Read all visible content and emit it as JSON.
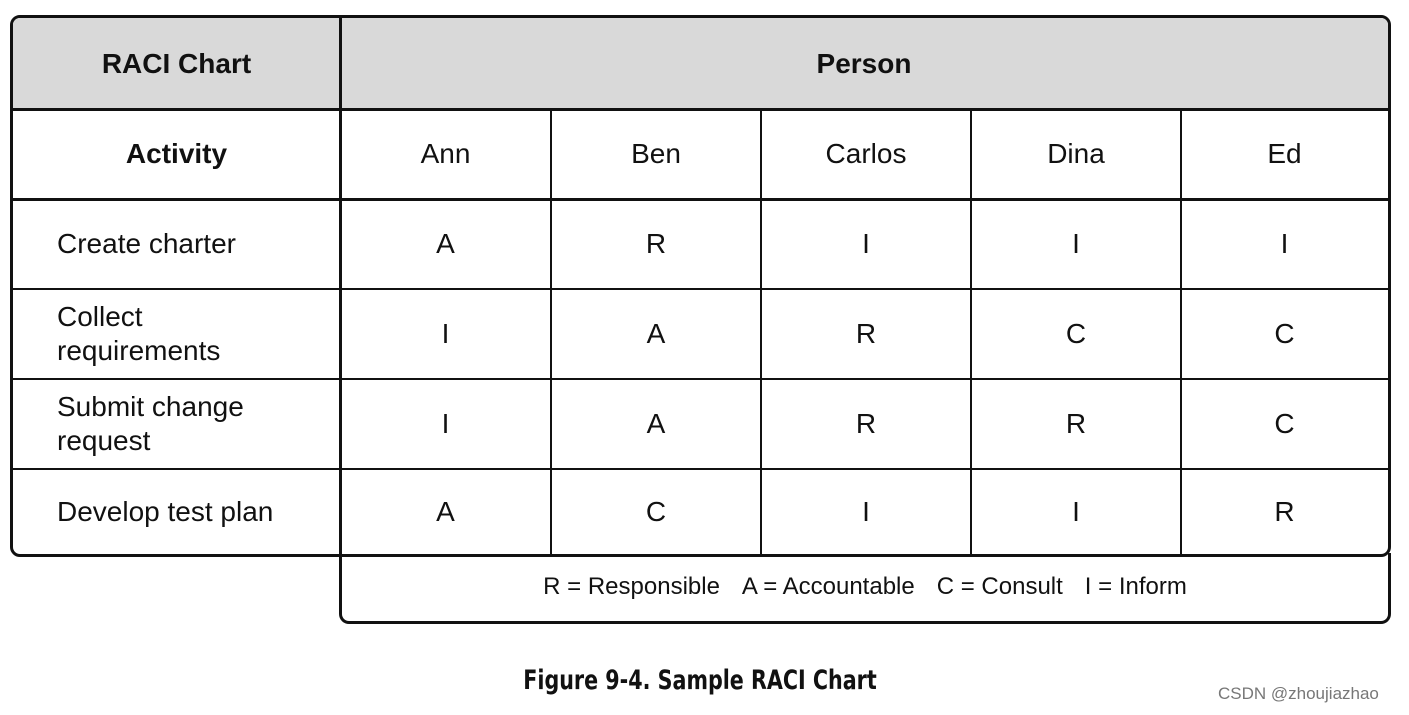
{
  "header": {
    "corner": "RACI Chart",
    "group": "Person"
  },
  "table": {
    "activity_label": "Activity",
    "persons": [
      "Ann",
      "Ben",
      "Carlos",
      "Dina",
      "Ed"
    ],
    "rows": [
      {
        "activity": "Create charter",
        "cells": [
          "A",
          "R",
          "I",
          "I",
          "I"
        ]
      },
      {
        "activity": "Collect requirements",
        "cells": [
          "I",
          "A",
          "R",
          "C",
          "C"
        ]
      },
      {
        "activity": "Submit change request",
        "cells": [
          "I",
          "A",
          "R",
          "R",
          "C"
        ]
      },
      {
        "activity": "Develop test plan",
        "cells": [
          "A",
          "C",
          "I",
          "I",
          "R"
        ]
      }
    ]
  },
  "legend": [
    "R = Responsible",
    "A = Accountable",
    "C = Consult",
    "I = Inform"
  ],
  "caption": "Figure 9-4. Sample RACI Chart",
  "watermark": "CSDN @zhoujiazhao"
}
